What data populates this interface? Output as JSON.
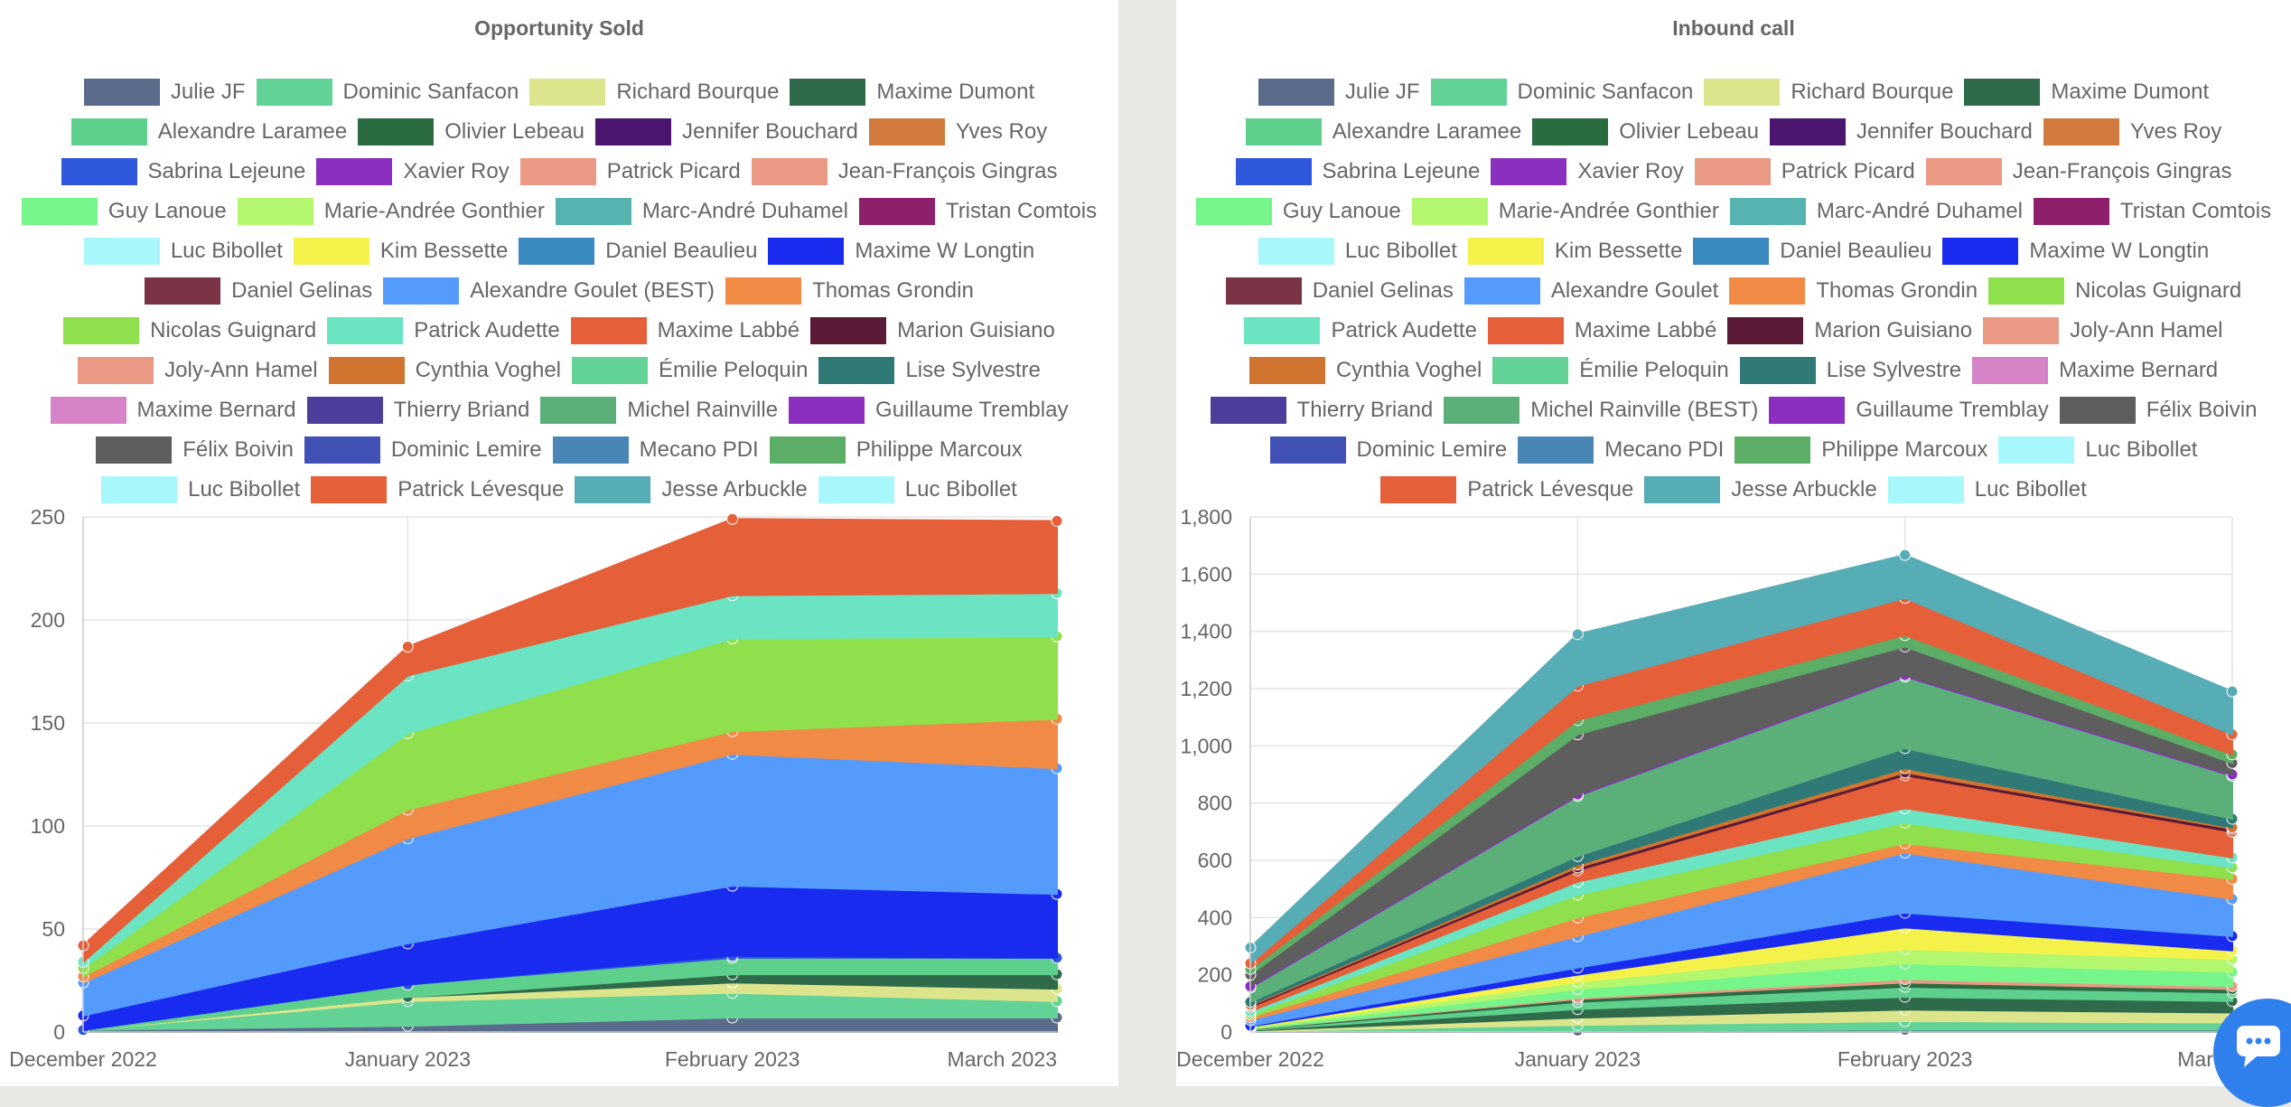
{
  "chart_data": [
    {
      "type": "area",
      "title": "Opportunity Sold",
      "x": [
        "December 2022",
        "January 2023",
        "February 2023",
        "March 2023"
      ],
      "ylim": [
        0,
        250
      ],
      "yticks": [
        0,
        50,
        100,
        150,
        200,
        250
      ],
      "ytick_labels": [
        "0",
        "50",
        "100",
        "150",
        "200",
        "250"
      ],
      "stacked": true,
      "grid": true,
      "legend_position": "top",
      "legend_rows": [
        [
          "Julie JF",
          "Dominic Sanfacon",
          "Richard Bourque",
          "Maxime Dumont"
        ],
        [
          "Alexandre Laramee",
          "Olivier Lebeau",
          "Jennifer Bouchard",
          "Yves Roy"
        ],
        [
          "Sabrina Lejeune",
          "Xavier Roy",
          "Patrick Picard",
          "Jean-François Gingras"
        ],
        [
          "Guy Lanoue",
          "Marie-Andrée Gonthier",
          "Marc-André Duhamel",
          "Tristan Comtois"
        ],
        [
          "Luc Bibollet",
          "Kim Bessette",
          "Daniel Beaulieu",
          "Maxime W Longtin"
        ],
        [
          "Daniel Gelinas",
          "Alexandre Goulet (BEST)",
          "Thomas Grondin"
        ],
        [
          "Nicolas Guignard",
          "Patrick Audette",
          "Maxime Labbé",
          "Marion Guisiano"
        ],
        [
          "Joly-Ann Hamel",
          "Cynthia Voghel",
          "Émilie Peloquin",
          "Lise Sylvestre"
        ],
        [
          "Maxime Bernard",
          "Thierry  Briand",
          "Michel Rainville",
          "Guillaume Tremblay"
        ],
        [
          "Félix Boivin",
          "Dominic  Lemire",
          "Mecano PDI",
          "Philippe Marcoux"
        ],
        [
          "Luc Bibollet",
          "Patrick Lévesque",
          "Jesse Arbuckle",
          "Luc Bibollet"
        ]
      ],
      "series": [
        {
          "name": "Julie JF",
          "color": "#5b6b8c",
          "values": [
            1,
            3,
            7,
            7
          ]
        },
        {
          "name": "Dominic Sanfacon",
          "color": "#63d297",
          "values": [
            0,
            12,
            12,
            8
          ]
        },
        {
          "name": "Richard Bourque",
          "color": "#dde58c",
          "values": [
            0,
            2,
            5,
            6
          ]
        },
        {
          "name": "Maxime Dumont",
          "color": "#2f6b4b",
          "values": [
            0,
            0,
            4,
            7
          ]
        },
        {
          "name": "Alexandre Laramee",
          "color": "#5fcf8e",
          "values": [
            0,
            6,
            8,
            8
          ]
        },
        {
          "name": "Sabrina Lejeune",
          "color": "#2f57dc",
          "values": [
            0,
            0,
            1,
            0
          ]
        },
        {
          "name": "Maxime W Longtin",
          "color": "#1a2bf0",
          "values": [
            7,
            20,
            34,
            31
          ]
        },
        {
          "name": "Alexandre Goulet (BEST)",
          "color": "#559bfb",
          "values": [
            16,
            51,
            64,
            61
          ]
        },
        {
          "name": "Thomas Grondin",
          "color": "#f08a45",
          "values": [
            3,
            14,
            11,
            24
          ]
        },
        {
          "name": "Nicolas Guignard",
          "color": "#8fe04c",
          "values": [
            4,
            37,
            45,
            40
          ]
        },
        {
          "name": "Patrick Audette",
          "color": "#6ae4c2",
          "values": [
            3,
            28,
            21,
            21
          ]
        },
        {
          "name": "Maxime Labbé",
          "color": "#e55f39",
          "values": [
            8,
            14,
            37,
            35
          ]
        }
      ]
    },
    {
      "type": "area",
      "title": "Inbound call",
      "x": [
        "December 2022",
        "January 2023",
        "February 2023",
        "March 2023"
      ],
      "ylim": [
        0,
        1800
      ],
      "yticks": [
        0,
        200,
        400,
        600,
        800,
        1000,
        1200,
        1400,
        1600,
        1800
      ],
      "ytick_labels": [
        "0",
        "200",
        "400",
        "600",
        "800",
        "1,000",
        "1,200",
        "1,400",
        "1,600",
        "1,800"
      ],
      "stacked": true,
      "grid": true,
      "legend_position": "top",
      "legend_rows": [
        [
          "Julie JF",
          "Dominic Sanfacon",
          "Richard Bourque",
          "Maxime Dumont"
        ],
        [
          "Alexandre Laramee",
          "Olivier Lebeau",
          "Jennifer Bouchard",
          "Yves Roy"
        ],
        [
          "Sabrina Lejeune",
          "Xavier Roy",
          "Patrick Picard",
          "Jean-François Gingras"
        ],
        [
          "Guy Lanoue",
          "Marie-Andrée Gonthier",
          "Marc-André Duhamel",
          "Tristan Comtois"
        ],
        [
          "Luc Bibollet",
          "Kim Bessette",
          "Daniel Beaulieu",
          "Maxime W Longtin"
        ],
        [
          "Daniel Gelinas",
          "Alexandre Goulet",
          "Thomas Grondin",
          "Nicolas Guignard"
        ],
        [
          "Patrick Audette",
          "Maxime Labbé",
          "Marion Guisiano",
          "Joly-Ann Hamel"
        ],
        [
          "Cynthia Voghel",
          "Émilie Peloquin",
          "Lise Sylvestre",
          "Maxime Bernard"
        ],
        [
          "Thierry  Briand",
          "Michel Rainville (BEST)",
          "Guillaume Tremblay",
          "Félix Boivin"
        ],
        [
          "Dominic  Lemire",
          "Mecano PDI",
          "Philippe Marcoux",
          "Luc Bibollet"
        ],
        [
          "Patrick Lévesque",
          "Jesse Arbuckle",
          "Luc Bibollet"
        ]
      ],
      "series": [
        {
          "name": "Julie JF",
          "color": "#5b6b8c",
          "values": [
            1,
            5,
            8,
            8
          ]
        },
        {
          "name": "Dominic Sanfacon",
          "color": "#63d297",
          "values": [
            2,
            20,
            30,
            25
          ]
        },
        {
          "name": "Richard Bourque",
          "color": "#dde58c",
          "values": [
            2,
            25,
            40,
            35
          ]
        },
        {
          "name": "Maxime Dumont",
          "color": "#2f6b4b",
          "values": [
            2,
            30,
            45,
            40
          ]
        },
        {
          "name": "Alexandre Laramee",
          "color": "#5fcf8e",
          "values": [
            2,
            25,
            35,
            30
          ]
        },
        {
          "name": "Olivier Lebeau",
          "color": "#2a6b42",
          "values": [
            1,
            10,
            15,
            12
          ]
        },
        {
          "name": "Patrick Picard",
          "color": "#ea9a84",
          "values": [
            1,
            5,
            12,
            10
          ]
        },
        {
          "name": "Guy Lanoue",
          "color": "#76f58a",
          "values": [
            3,
            30,
            55,
            50
          ]
        },
        {
          "name": "Marie-Andrée Gonthier",
          "color": "#b3f76e",
          "values": [
            3,
            25,
            50,
            45
          ]
        },
        {
          "name": "Kim Bessette",
          "color": "#f4f24a",
          "values": [
            2,
            25,
            75,
            30
          ]
        },
        {
          "name": "Maxime W Longtin",
          "color": "#1a2bf0",
          "values": [
            3,
            25,
            52,
            50
          ]
        },
        {
          "name": "Alexandre Goulet",
          "color": "#559bfb",
          "values": [
            20,
            110,
            210,
            130
          ]
        },
        {
          "name": "Thomas Grondin",
          "color": "#f08a45",
          "values": [
            10,
            65,
            33,
            70
          ]
        },
        {
          "name": "Nicolas Guignard",
          "color": "#8fe04c",
          "values": [
            10,
            80,
            72,
            40
          ]
        },
        {
          "name": "Patrick Audette",
          "color": "#6ae4c2",
          "values": [
            10,
            45,
            50,
            35
          ]
        },
        {
          "name": "Maxime Labbé",
          "color": "#e55f39",
          "values": [
            15,
            40,
            115,
            90
          ]
        },
        {
          "name": "Marion Guisiano",
          "color": "#5b1a38",
          "values": [
            5,
            10,
            10,
            10
          ]
        },
        {
          "name": "Cynthia Voghel",
          "color": "#d17430",
          "values": [
            3,
            10,
            15,
            5
          ]
        },
        {
          "name": "Lise Sylvestre",
          "color": "#2f7a76",
          "values": [
            10,
            30,
            70,
            30
          ]
        },
        {
          "name": "Michel Rainville (BEST)",
          "color": "#5bb07a",
          "values": [
            50,
            210,
            250,
            150
          ]
        },
        {
          "name": "Guillaume Tremblay",
          "color": "#8a2fc0",
          "values": [
            5,
            5,
            5,
            5
          ]
        },
        {
          "name": "Félix Boivin",
          "color": "#5e5e5e",
          "values": [
            40,
            210,
            100,
            40
          ]
        },
        {
          "name": "Philippe Marcoux",
          "color": "#5cad66",
          "values": [
            20,
            50,
            40,
            30
          ]
        },
        {
          "name": "Patrick Lévesque",
          "color": "#e55f39",
          "values": [
            20,
            120,
            130,
            70
          ]
        },
        {
          "name": "Jesse Arbuckle",
          "color": "#56adb5",
          "values": [
            55,
            180,
            150,
            150
          ]
        }
      ]
    }
  ],
  "legend_colors": {
    "Julie JF": "#5b6b8c",
    "Dominic Sanfacon": "#63d297",
    "Richard Bourque": "#dde58c",
    "Maxime Dumont": "#2f6b4b",
    "Alexandre Laramee": "#5fcf8e",
    "Olivier Lebeau": "#2a6b42",
    "Jennifer Bouchard": "#4a1670",
    "Yves Roy": "#d17a3e",
    "Sabrina Lejeune": "#2f57dc",
    "Xavier Roy": "#8a2fc0",
    "Patrick Picard": "#ea9a84",
    "Jean-François Gingras": "#ea9a84",
    "Guy Lanoue": "#76f58a",
    "Marie-Andrée Gonthier": "#b3f76e",
    "Marc-André Duhamel": "#56b3b0",
    "Tristan Comtois": "#8e1f6a",
    "Luc Bibollet": "#a8f8fb",
    "Kim Bessette": "#f4f24a",
    "Daniel Beaulieu": "#3a89c0",
    "Maxime W Longtin": "#1a2bf0",
    "Daniel Gelinas": "#7a3344",
    "Alexandre Goulet (BEST)": "#559bfb",
    "Alexandre Goulet": "#559bfb",
    "Thomas Grondin": "#f08a45",
    "Nicolas Guignard": "#8fe04c",
    "Patrick Audette": "#6ae4c2",
    "Maxime Labbé": "#e55f39",
    "Marion Guisiano": "#5b1a38",
    "Joly-Ann Hamel": "#ea9a84",
    "Cynthia Voghel": "#d17430",
    "Émilie Peloquin": "#63d297",
    "Lise Sylvestre": "#2f7a76",
    "Maxime Bernard": "#d683c8",
    "Thierry  Briand": "#4c3f9c",
    "Michel Rainville": "#5bb07a",
    "Michel Rainville (BEST)": "#5bb07a",
    "Guillaume Tremblay": "#8a2fc0",
    "Félix Boivin": "#5e5e5e",
    "Dominic  Lemire": "#4151b5",
    "Mecano PDI": "#4a86b5",
    "Philippe Marcoux": "#5cad66",
    "Patrick Lévesque": "#e55f39",
    "Jesse Arbuckle": "#56adb5"
  },
  "chat_widget": {
    "icon": "chat-bubble-icon",
    "color": "#2f80ed"
  }
}
